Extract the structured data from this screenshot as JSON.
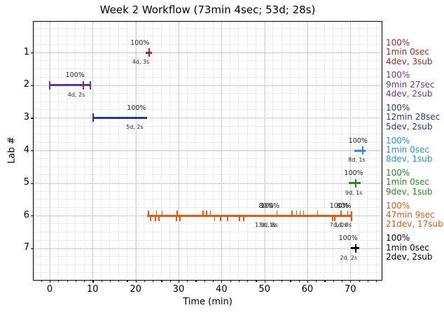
{
  "chart_data": {
    "type": "timeline",
    "title": "Week 2 Workflow (73min 4sec; 53d; 28s)",
    "xlabel": "Time (min)",
    "ylabel": "Lab #",
    "xlim": [
      -3.75,
      77.3
    ],
    "xticks": [
      0,
      10,
      20,
      30,
      40,
      50,
      60,
      70
    ],
    "x_minor_step": 2,
    "ylim": [
      0.05,
      7.95
    ],
    "yticks": [
      1,
      2,
      3,
      4,
      5,
      6,
      7
    ],
    "y_minor_step": 0.25,
    "grid": {
      "major_color": "#b0b0b0",
      "minor_color": "#ededed",
      "style": "dotted"
    },
    "legend_position": "right-margin",
    "labs": [
      {
        "lab": 1,
        "color": "#b22222",
        "segments": [
          {
            "start": 22.4,
            "end": 23.8
          }
        ],
        "main_ticks": [
          23.1
        ],
        "up_ticks": [],
        "down_ticks": [],
        "annotations": [
          {
            "text": "100%",
            "x": 21.0,
            "pos": "above"
          },
          {
            "text": "4d, 3s",
            "x": 21.2,
            "pos": "below"
          }
        ],
        "summary": {
          "score": "100%",
          "time": "1min 0sec",
          "counts": "4dev, 3sub"
        }
      },
      {
        "lab": 2,
        "color": "#663399",
        "segments": [
          {
            "start": 0.0,
            "end": 9.5
          }
        ],
        "main_ticks": [
          0.0,
          7.9,
          9.5
        ],
        "up_ticks": [],
        "down_ticks": [],
        "annotations": [
          {
            "text": "100%",
            "x": 5.9,
            "pos": "above"
          },
          {
            "text": "4d, 2s",
            "x": 6.2,
            "pos": "below"
          }
        ],
        "summary": {
          "score": "100%",
          "time": "9min 27sec",
          "counts": "4dev, 2sub"
        }
      },
      {
        "lab": 3,
        "color": "#283593",
        "segments": [
          {
            "start": 10.1,
            "end": 22.6
          }
        ],
        "main_ticks": [
          10.1
        ],
        "up_ticks": [],
        "down_ticks": [],
        "annotations": [
          {
            "text": "100%",
            "x": 20.2,
            "pos": "above"
          },
          {
            "text": "5d, 2s",
            "x": 19.8,
            "pos": "below"
          }
        ],
        "summary": {
          "score": "100%",
          "time": "12min 28sec",
          "counts": "5dev, 2sub"
        }
      },
      {
        "lab": 4,
        "color": "#1e90ff",
        "segments": [
          {
            "start": 70.9,
            "end": 73.6
          }
        ],
        "main_ticks": [
          72.9
        ],
        "up_ticks": [],
        "down_ticks": [],
        "annotations": [
          {
            "text": "100%",
            "x": 71.8,
            "pos": "above"
          },
          {
            "text": "8d, 1s",
            "x": 71.5,
            "pos": "below"
          }
        ],
        "summary": {
          "score": "100%",
          "time": "1min 0sec",
          "counts": "8dev, 1sub"
        }
      },
      {
        "lab": 5,
        "color": "#228b22",
        "segments": [
          {
            "start": 69.7,
            "end": 72.4
          }
        ],
        "main_ticks": [
          71.3
        ],
        "up_ticks": [],
        "down_ticks": [],
        "annotations": [
          {
            "text": "100%",
            "x": 70.8,
            "pos": "above"
          },
          {
            "text": "9d, 1s",
            "x": 70.8,
            "pos": "below"
          }
        ],
        "summary": {
          "score": "100%",
          "time": "1min 0sec",
          "counts": "9dev, 1sub"
        }
      },
      {
        "lab": 6,
        "color": "#e8590c",
        "segments": [
          {
            "start": 22.7,
            "end": 70.3
          }
        ],
        "main_ticks": [
          70.3
        ],
        "up_ticks": [
          23.0,
          24.9,
          26.2,
          29.7,
          35.7,
          36.5,
          37.4,
          52.9,
          56.4,
          57.5,
          58.3,
          59.1,
          62.4,
          67.8,
          69.4
        ],
        "down_ticks": [
          23.5,
          24.6,
          25.4,
          29.5,
          30.3,
          38.4,
          39.8,
          41.4,
          44.2,
          45.2,
          65.9,
          66.4,
          70.3
        ],
        "annotations": [
          {
            "text": "80%",
            "x": 50.4,
            "pos": "above"
          },
          {
            "text": "100%",
            "x": 51.3,
            "pos": "above"
          },
          {
            "text": "13d, 1s",
            "x": 50.2,
            "pos": "below"
          },
          {
            "text": "0d, 8s",
            "x": 51.1,
            "pos": "below"
          },
          {
            "text": "100%",
            "x": 67.4,
            "pos": "above"
          },
          {
            "text": "80%",
            "x": 68.5,
            "pos": "above"
          },
          {
            "text": "7d, 0s",
            "x": 67.2,
            "pos": "below"
          },
          {
            "text": "1d, 8s",
            "x": 68.3,
            "pos": "below"
          }
        ],
        "summary": {
          "score": "100%",
          "time": "47min 9sec",
          "counts": "21dev, 17sub"
        }
      },
      {
        "lab": 7,
        "color": "#000000",
        "segments": [
          {
            "start": 70.2,
            "end": 72.1
          }
        ],
        "main_ticks": [
          71.2
        ],
        "up_ticks": [],
        "down_ticks": [],
        "annotations": [
          {
            "text": "100%",
            "x": 69.5,
            "pos": "above"
          },
          {
            "text": "2d, 2s",
            "x": 69.6,
            "pos": "below"
          }
        ],
        "summary": {
          "score": "100%",
          "time": "1min 0sec",
          "counts": "2dev, 2sub"
        }
      }
    ]
  }
}
